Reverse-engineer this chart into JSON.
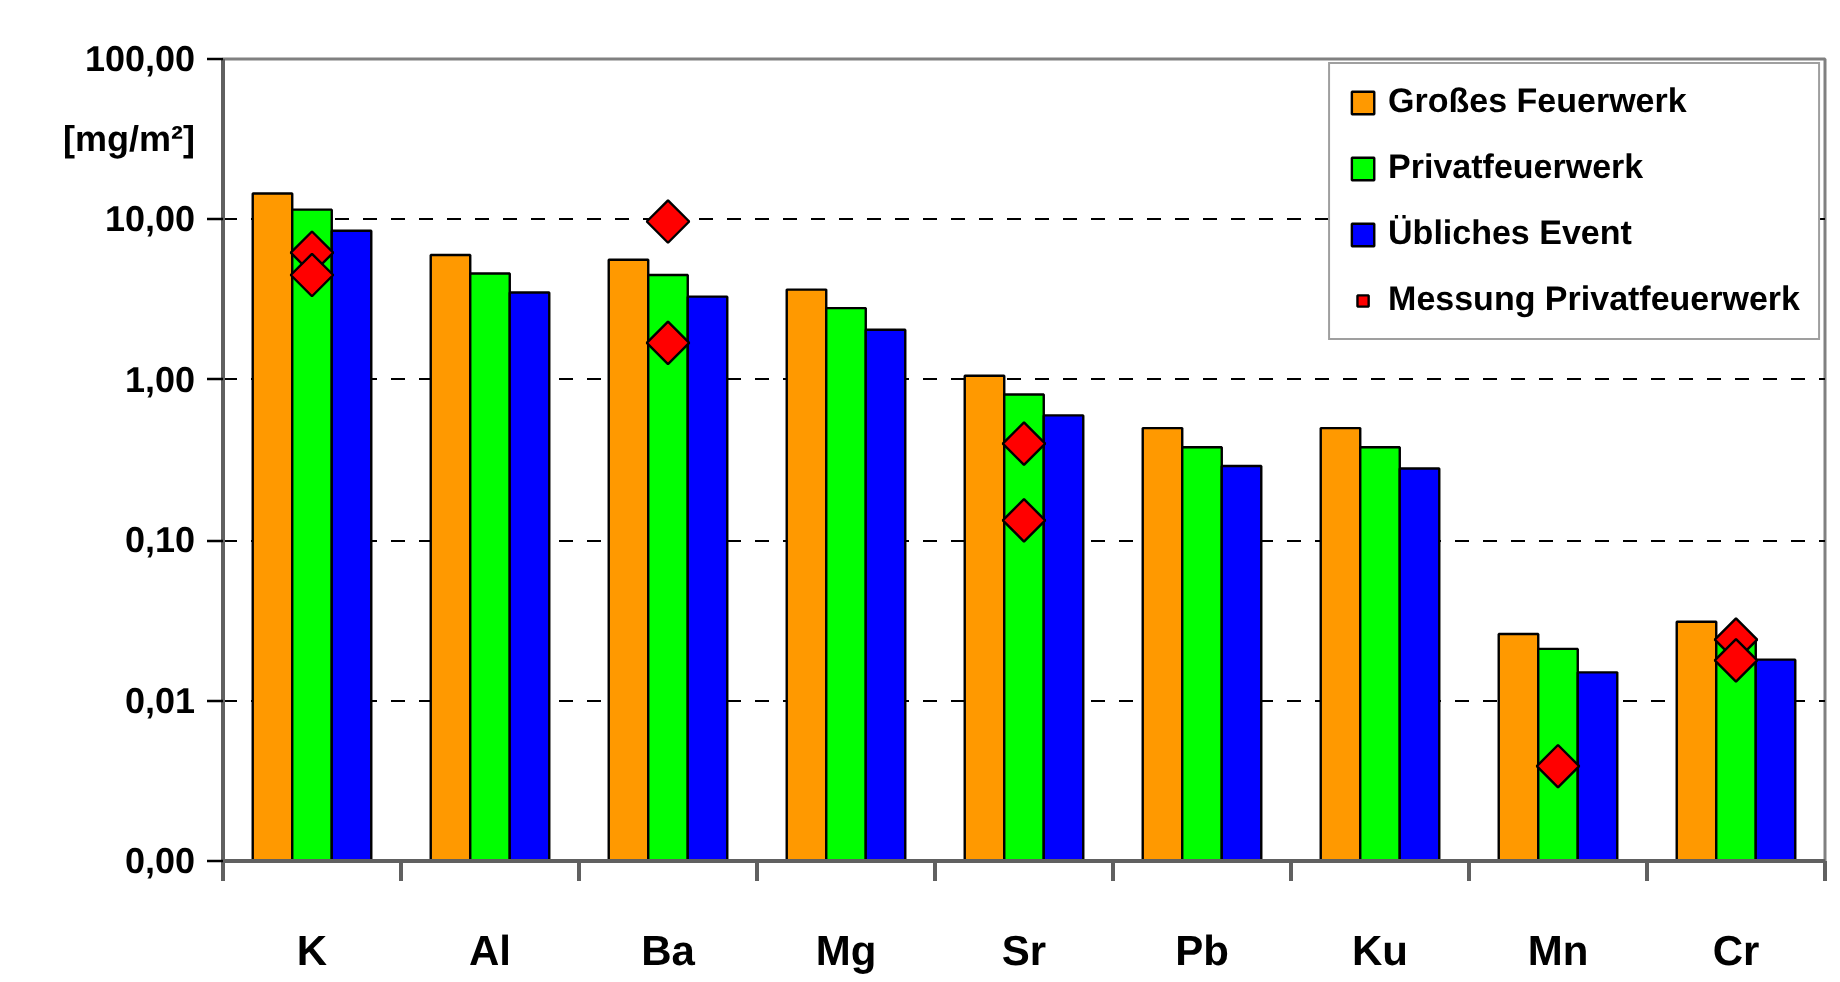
{
  "chart_data": {
    "type": "bar",
    "ylabel": "[mg/m²]",
    "categories": [
      "K",
      "Al",
      "Ba",
      "Mg",
      "Sr",
      "Pb",
      "Ku",
      "Mn",
      "Cr"
    ],
    "series": [
      {
        "name": "Großes Feuerwerk",
        "color": "#ff9900",
        "values": [
          14.5,
          6.0,
          5.6,
          3.65,
          1.06,
          0.5,
          0.5,
          0.026,
          0.031
        ]
      },
      {
        "name": "Privatfeuerwerk",
        "color": "#00ff00",
        "values": [
          11.5,
          4.6,
          4.5,
          2.8,
          0.81,
          0.38,
          0.38,
          0.021,
          0.024
        ]
      },
      {
        "name": "Übliches Event",
        "color": "#0000ff",
        "values": [
          8.5,
          3.5,
          3.3,
          2.05,
          0.6,
          0.29,
          0.28,
          0.015,
          0.018
        ]
      },
      {
        "name": "Messung Privatfeuerwerk",
        "type": "scatter",
        "color": "#ff0000",
        "x": [
          "K",
          "K",
          "Ba",
          "Ba",
          "Sr",
          "Sr",
          "Mn",
          "Cr",
          "Cr"
        ],
        "values": [
          6.2,
          4.5,
          9.7,
          1.7,
          0.4,
          0.133,
          0.0039,
          0.024,
          0.0178
        ]
      }
    ],
    "ylim": [
      0.001,
      100
    ],
    "yticks": [
      {
        "value": 0.001,
        "label": "0,00"
      },
      {
        "value": 0.01,
        "label": "0,01"
      },
      {
        "value": 0.1,
        "label": "0,10"
      },
      {
        "value": 1,
        "label": "1,00"
      },
      {
        "value": 10,
        "label": "10,00"
      },
      {
        "value": 100,
        "label": "100,00"
      }
    ],
    "log": true,
    "grid": "y",
    "legend": "top right",
    "marker": "diamond"
  }
}
